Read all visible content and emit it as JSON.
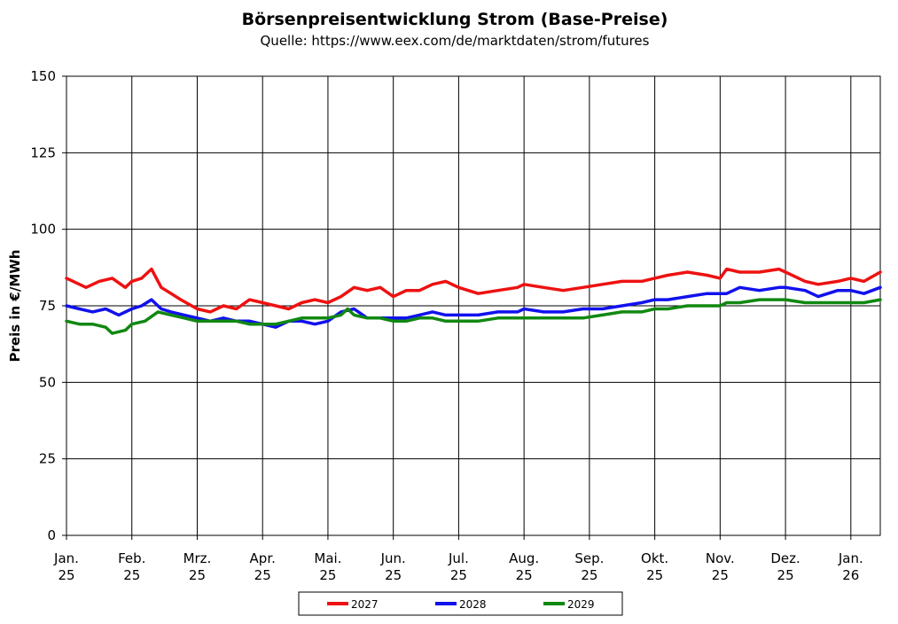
{
  "chart_data": {
    "type": "line",
    "title": "Börsenpreisentwicklung Strom (Base-Preise)",
    "subtitle": "Quelle:  https://www.eex.com/de/marktdaten/strom/futures",
    "ylabel": "Preis in €/MWh",
    "xlabel": "",
    "ylim": [
      0,
      150
    ],
    "yticks": [
      0,
      25,
      50,
      75,
      100,
      125,
      150
    ],
    "xlim": [
      0,
      12.45
    ],
    "xticks": [
      {
        "x": 0,
        "month": "Jan.",
        "year": "25"
      },
      {
        "x": 1,
        "month": "Feb.",
        "year": "25"
      },
      {
        "x": 2,
        "month": "Mrz.",
        "year": "25"
      },
      {
        "x": 3,
        "month": "Apr.",
        "year": "25"
      },
      {
        "x": 4,
        "month": "Mai.",
        "year": "25"
      },
      {
        "x": 5,
        "month": "Jun.",
        "year": "25"
      },
      {
        "x": 6,
        "month": "Jul.",
        "year": "25"
      },
      {
        "x": 7,
        "month": "Aug.",
        "year": "25"
      },
      {
        "x": 8,
        "month": "Sep.",
        "year": "25"
      },
      {
        "x": 9,
        "month": "Okt.",
        "year": "25"
      },
      {
        "x": 10,
        "month": "Nov.",
        "year": "25"
      },
      {
        "x": 11,
        "month": "Dez.",
        "year": "25"
      },
      {
        "x": 12,
        "month": "Jan.",
        "year": "26"
      }
    ],
    "grid": true,
    "legend_position": "bottom",
    "series": [
      {
        "name": "2027",
        "color": "#ee1111",
        "x": [
          0,
          0.2,
          0.3,
          0.5,
          0.7,
          0.9,
          1.0,
          1.15,
          1.3,
          1.45,
          1.6,
          1.75,
          2.0,
          2.2,
          2.4,
          2.6,
          2.8,
          3.0,
          3.2,
          3.4,
          3.6,
          3.8,
          4.0,
          4.2,
          4.4,
          4.6,
          4.8,
          5.0,
          5.2,
          5.4,
          5.6,
          5.8,
          6.0,
          6.3,
          6.6,
          6.9,
          7.0,
          7.3,
          7.6,
          7.9,
          8.2,
          8.5,
          8.8,
          9.0,
          9.2,
          9.5,
          9.8,
          10.0,
          10.1,
          10.3,
          10.6,
          10.9,
          11.0,
          11.3,
          11.5,
          11.8,
          12.0,
          12.2,
          12.45
        ],
        "values": [
          84,
          82,
          81,
          83,
          84,
          81,
          83,
          84,
          87,
          81,
          79,
          77,
          74,
          73,
          75,
          74,
          77,
          76,
          75,
          74,
          76,
          77,
          76,
          78,
          81,
          80,
          81,
          78,
          80,
          80,
          82,
          83,
          81,
          79,
          80,
          81,
          82,
          81,
          80,
          81,
          82,
          83,
          83,
          84,
          85,
          86,
          85,
          84,
          87,
          86,
          86,
          87,
          86,
          83,
          82,
          83,
          84,
          83,
          86
        ]
      },
      {
        "name": "2028",
        "color": "#1111ee",
        "x": [
          0,
          0.2,
          0.4,
          0.6,
          0.8,
          1.0,
          1.15,
          1.3,
          1.45,
          1.6,
          1.8,
          2.0,
          2.2,
          2.4,
          2.6,
          2.8,
          3.0,
          3.2,
          3.4,
          3.6,
          3.8,
          4.0,
          4.2,
          4.4,
          4.6,
          4.8,
          5.0,
          5.2,
          5.4,
          5.6,
          5.8,
          6.0,
          6.3,
          6.6,
          6.9,
          7.0,
          7.3,
          7.6,
          7.9,
          8.2,
          8.5,
          8.8,
          9.0,
          9.2,
          9.5,
          9.8,
          10.0,
          10.1,
          10.3,
          10.6,
          10.9,
          11.0,
          11.3,
          11.5,
          11.8,
          12.0,
          12.2,
          12.45
        ],
        "values": [
          75,
          74,
          73,
          74,
          72,
          74,
          75,
          77,
          74,
          73,
          72,
          71,
          70,
          71,
          70,
          70,
          69,
          68,
          70,
          70,
          69,
          70,
          73,
          74,
          71,
          71,
          71,
          71,
          72,
          73,
          72,
          72,
          72,
          73,
          73,
          74,
          73,
          73,
          74,
          74,
          75,
          76,
          77,
          77,
          78,
          79,
          79,
          79,
          81,
          80,
          81,
          81,
          80,
          78,
          80,
          80,
          79,
          81
        ]
      },
      {
        "name": "2029",
        "color": "#118811",
        "x": [
          0,
          0.2,
          0.4,
          0.6,
          0.7,
          0.9,
          1.0,
          1.2,
          1.4,
          1.6,
          1.8,
          2.0,
          2.2,
          2.4,
          2.6,
          2.8,
          3.0,
          3.2,
          3.4,
          3.6,
          3.8,
          4.0,
          4.2,
          4.3,
          4.4,
          4.6,
          4.8,
          5.0,
          5.2,
          5.4,
          5.6,
          5.8,
          6.0,
          6.3,
          6.6,
          6.9,
          7.0,
          7.3,
          7.6,
          7.9,
          8.2,
          8.5,
          8.8,
          9.0,
          9.2,
          9.5,
          9.8,
          10.0,
          10.1,
          10.3,
          10.6,
          10.9,
          11.0,
          11.3,
          11.5,
          11.8,
          12.0,
          12.2,
          12.45
        ],
        "values": [
          70,
          69,
          69,
          68,
          66,
          67,
          69,
          70,
          73,
          72,
          71,
          70,
          70,
          70,
          70,
          69,
          69,
          69,
          70,
          71,
          71,
          71,
          72,
          74,
          72,
          71,
          71,
          70,
          70,
          71,
          71,
          70,
          70,
          70,
          71,
          71,
          71,
          71,
          71,
          71,
          72,
          73,
          73,
          74,
          74,
          75,
          75,
          75,
          76,
          76,
          77,
          77,
          77,
          76,
          76,
          76,
          76,
          76,
          77
        ]
      }
    ]
  }
}
